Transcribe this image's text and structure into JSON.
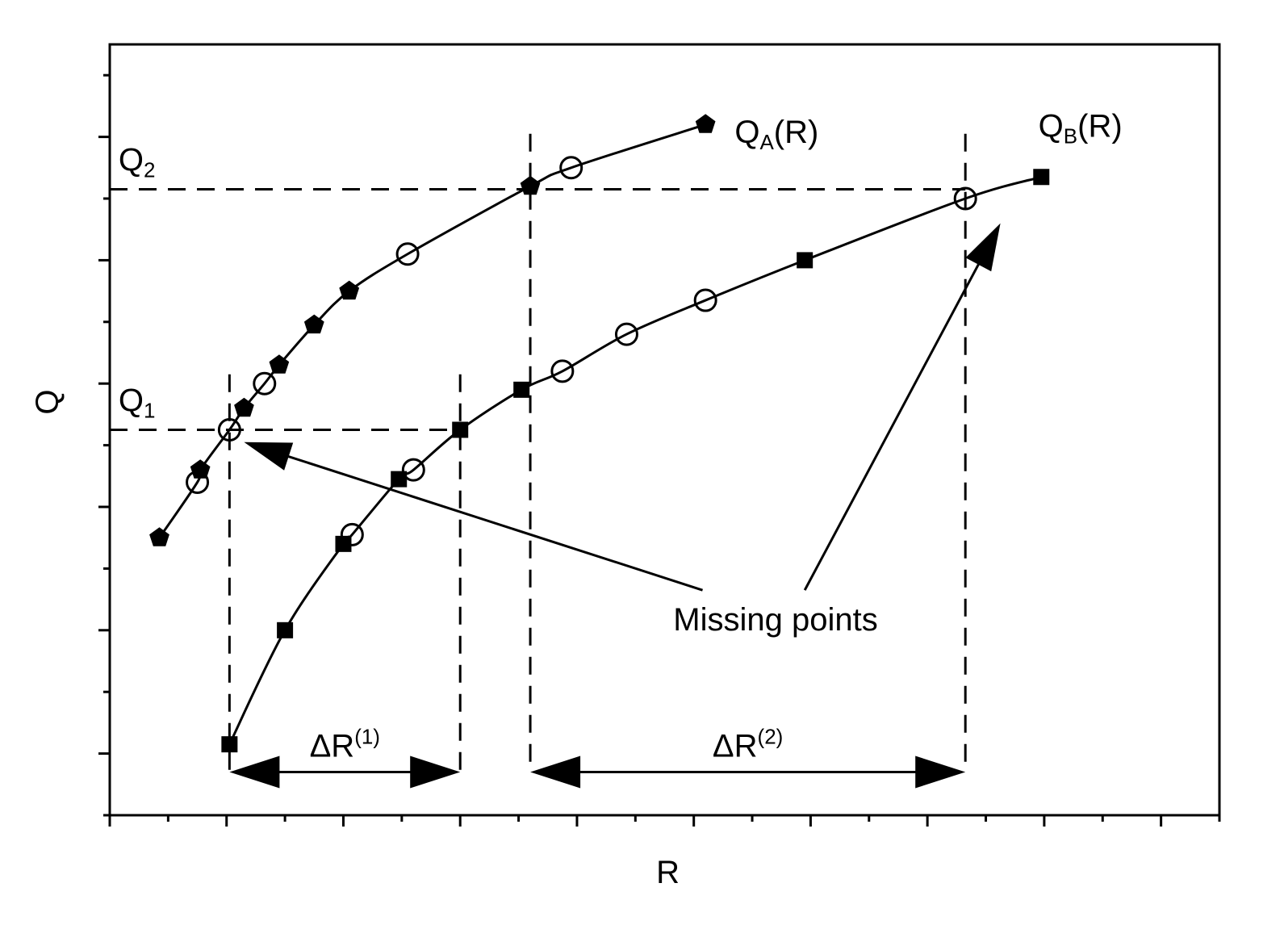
{
  "chart_data": {
    "type": "line",
    "xlabel": "R",
    "ylabel": "Q",
    "xlim": [
      0,
      19
    ],
    "ylim": [
      0,
      12.5
    ],
    "grid": false,
    "colors": {
      "ink": "#000000",
      "background": "#ffffff"
    },
    "series": [
      {
        "name": "Q_A(R)",
        "label_main": "Q",
        "label_sub": "A",
        "label_tail": "(R)",
        "marker": "pentagon",
        "points": [
          [
            0.85,
            4.5
          ],
          [
            1.55,
            5.6
          ],
          [
            2.3,
            6.6
          ],
          [
            2.9,
            7.3
          ],
          [
            3.5,
            7.95
          ],
          [
            4.1,
            8.5
          ],
          [
            7.2,
            10.2
          ],
          [
            10.2,
            11.2
          ]
        ],
        "missing_points": [
          [
            1.5,
            5.4
          ],
          [
            2.05,
            6.25
          ],
          [
            2.65,
            7.0
          ],
          [
            5.1,
            9.1
          ],
          [
            7.9,
            10.5
          ]
        ]
      },
      {
        "name": "Q_B(R)",
        "label_main": "Q",
        "label_sub": "B",
        "label_tail": "(R)",
        "marker": "square",
        "points": [
          [
            2.05,
            1.15
          ],
          [
            3.0,
            3.0
          ],
          [
            4.0,
            4.4
          ],
          [
            4.95,
            5.45
          ],
          [
            6.0,
            6.25
          ],
          [
            7.05,
            6.9
          ],
          [
            11.9,
            9.0
          ],
          [
            15.95,
            10.35
          ]
        ],
        "missing_points": [
          [
            4.15,
            4.55
          ],
          [
            5.2,
            5.6
          ],
          [
            7.75,
            7.2
          ],
          [
            8.85,
            7.8
          ],
          [
            10.2,
            8.35
          ],
          [
            14.65,
            10.0
          ]
        ]
      }
    ],
    "reference_lines": {
      "Q1": {
        "label_main": "Q",
        "label_sub": "1",
        "y": 6.25
      },
      "Q2": {
        "label_main": "Q",
        "label_sub": "2",
        "y": 10.15
      },
      "verticals_R": [
        2.05,
        6.0,
        7.2,
        14.65
      ]
    },
    "intervals": [
      {
        "label_main": "ΔR",
        "label_sup": "(1)",
        "from": 2.05,
        "to": 6.0,
        "y": 0.7
      },
      {
        "label_main": "ΔR",
        "label_sup": "(2)",
        "from": 7.2,
        "to": 14.65,
        "y": 0.7
      }
    ],
    "annotation": {
      "text": "Missing points",
      "text_at": [
        11.4,
        3.0
      ],
      "arrow_tails": [
        [
          10.15,
          3.65
        ],
        [
          11.9,
          3.65
        ]
      ],
      "arrow_heads": [
        [
          2.3,
          6.05
        ],
        [
          15.25,
          9.6
        ]
      ]
    },
    "x_ticks": {
      "major_every": 2,
      "minor_every": 1
    },
    "y_ticks": {
      "major_every": 2,
      "minor_every": 1
    }
  }
}
